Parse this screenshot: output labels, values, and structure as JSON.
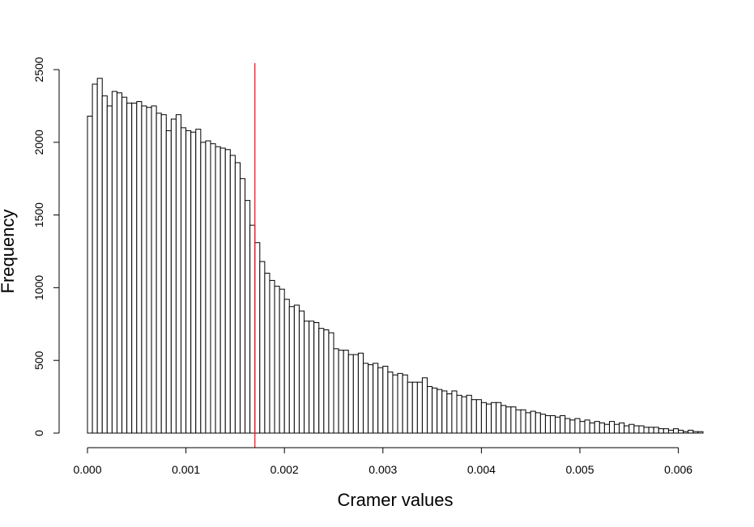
{
  "chart_data": {
    "type": "bar",
    "title": "",
    "xlabel": "Cramer values",
    "ylabel": "Frequency",
    "bin_width": 5e-05,
    "x_start": 0.0,
    "xlim": [
      0.0,
      0.00625
    ],
    "ylim": [
      0,
      2500
    ],
    "x_ticks": [
      "0.000",
      "0.001",
      "0.002",
      "0.003",
      "0.004",
      "0.005",
      "0.006"
    ],
    "y_ticks": [
      "0",
      "500",
      "1000",
      "1500",
      "2000",
      "2500"
    ],
    "grid": false,
    "bar_fill": "#ffffff",
    "bar_stroke": "#000000",
    "reference_line": {
      "x": 0.0017,
      "color": "#e0202a"
    },
    "values": [
      2180,
      2400,
      2440,
      2320,
      2250,
      2350,
      2340,
      2310,
      2270,
      2270,
      2280,
      2250,
      2240,
      2250,
      2200,
      2190,
      2080,
      2160,
      2190,
      2100,
      2080,
      2070,
      2090,
      2000,
      2010,
      1990,
      1970,
      1960,
      1950,
      1910,
      1860,
      1750,
      1600,
      1430,
      1310,
      1180,
      1100,
      1050,
      1010,
      990,
      920,
      870,
      880,
      840,
      770,
      770,
      760,
      720,
      710,
      690,
      580,
      570,
      570,
      540,
      540,
      550,
      480,
      470,
      480,
      450,
      460,
      420,
      400,
      410,
      400,
      350,
      350,
      350,
      380,
      320,
      310,
      300,
      290,
      270,
      290,
      260,
      250,
      260,
      230,
      230,
      210,
      200,
      210,
      210,
      190,
      180,
      180,
      160,
      160,
      140,
      150,
      140,
      130,
      120,
      120,
      110,
      120,
      100,
      90,
      100,
      80,
      90,
      70,
      80,
      70,
      60,
      80,
      60,
      70,
      50,
      60,
      50,
      50,
      40,
      40,
      40,
      30,
      30,
      20,
      30,
      20,
      10,
      20,
      10,
      10
    ]
  }
}
